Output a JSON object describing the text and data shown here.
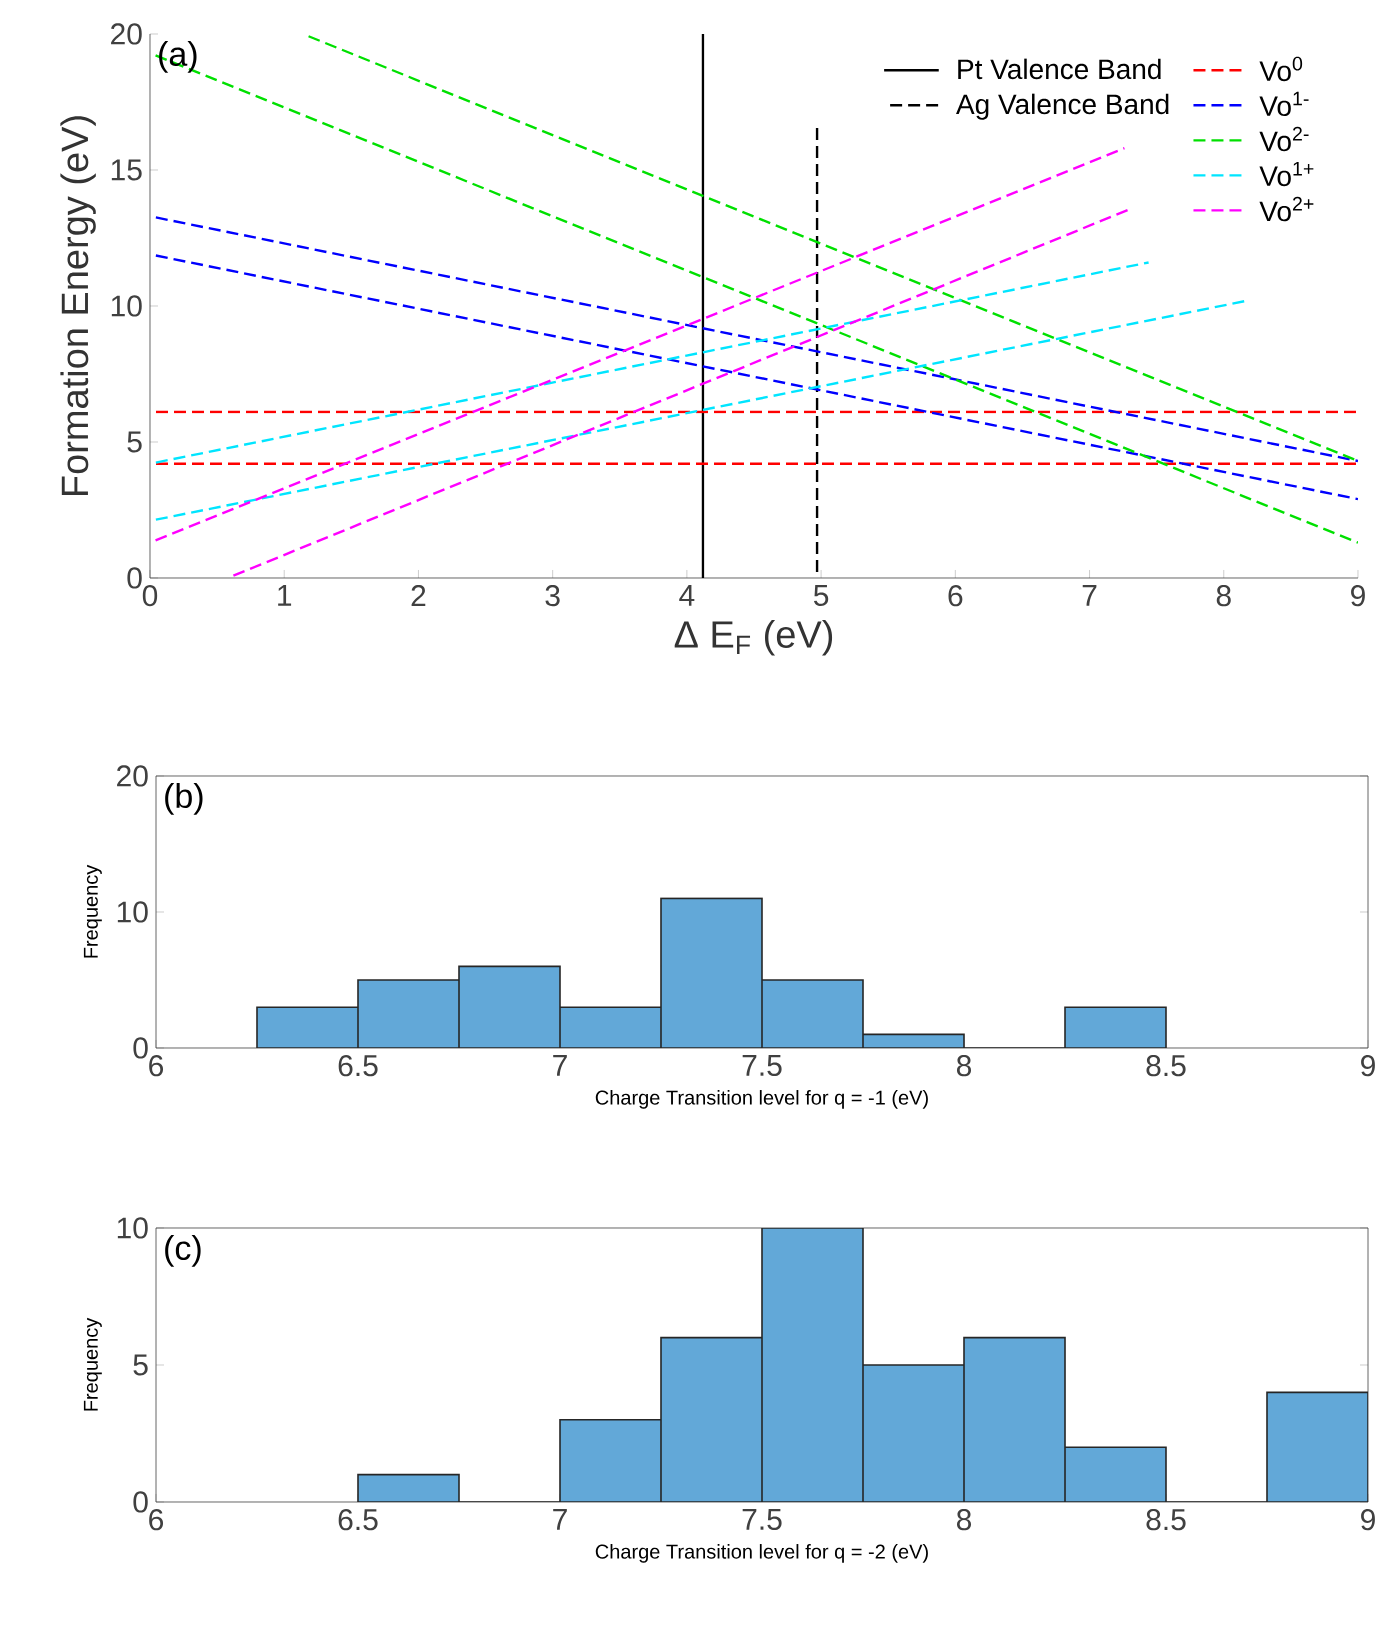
{
  "chart_data": [
    {
      "type": "line",
      "xlabel": "Δ E$_{F}$ (eV)",
      "ylabel": "Formation Energy (eV)",
      "annotations": [
        "(a)"
      ],
      "xlim": [
        0,
        9
      ],
      "ylim": [
        0,
        20
      ],
      "xticks": [
        0,
        1,
        2,
        3,
        4,
        5,
        6,
        7,
        8,
        9
      ],
      "yticks": [
        0,
        5,
        10,
        15,
        20
      ],
      "legend": "top right",
      "marker": "none",
      "grid": false,
      "series": [
        {
          "name": "Pt Valence Band",
          "color": "#000000",
          "line_style": "solid",
          "x": [
            4.12,
            4.12
          ],
          "values": [
            0,
            20
          ]
        },
        {
          "name": "Ag Valence Band",
          "color": "#000000",
          "line_style": "dashed",
          "x": [
            4.97,
            4.97
          ],
          "values": [
            0,
            16.6
          ]
        },
        {
          "name": "Vo$^{0}$",
          "color": "#ff0000",
          "line_style": "dashed",
          "x": [
            0,
            9
          ],
          "values": [
            6.1,
            6.1
          ]
        },
        {
          "color": "#ff0000",
          "line_style": "dashed",
          "x": [
            0,
            9
          ],
          "values": [
            4.2,
            4.2
          ]
        },
        {
          "name": "Vo$^{1-}$",
          "color": "#0000ff",
          "line_style": "dashed",
          "x": [
            0,
            9
          ],
          "values": [
            13.3,
            4.3
          ]
        },
        {
          "color": "#0000ff",
          "line_style": "dashed",
          "x": [
            0,
            9
          ],
          "values": [
            11.9,
            2.9
          ]
        },
        {
          "name": "Vo$^{2-}$",
          "color": "#00e000",
          "line_style": "dashed",
          "x": [
            0,
            9
          ],
          "values": [
            19.3,
            1.3
          ]
        },
        {
          "color": "#00e000",
          "line_style": "dashed",
          "x": [
            1.14,
            9
          ],
          "values": [
            20,
            4.3
          ]
        },
        {
          "name": "Vo$^{1+}$",
          "color": "#00e5ff",
          "line_style": "dashed",
          "x": [
            0,
            7.44
          ],
          "values": [
            4.2,
            11.6
          ]
        },
        {
          "color": "#00e5ff",
          "line_style": "dashed",
          "x": [
            0,
            8.18
          ],
          "values": [
            2.1,
            10.2
          ]
        },
        {
          "name": "Vo$^{2+}$",
          "color": "#ff00ff",
          "line_style": "dashed",
          "x": [
            0,
            7.26
          ],
          "values": [
            1.3,
            15.8
          ]
        },
        {
          "color": "#ff00ff",
          "line_style": "dashed",
          "x": [
            0.58,
            7.32
          ],
          "values": [
            0,
            13.6
          ]
        }
      ]
    },
    {
      "type": "histogram",
      "xlabel": "Charge Transition level for q = -1 (eV)",
      "ylabel": "Frequency",
      "annotations": [
        "(b)"
      ],
      "xlim": [
        6,
        9
      ],
      "ylim": [
        0,
        20
      ],
      "xticks": [
        6,
        6.5,
        7,
        7.5,
        8,
        8.5,
        9
      ],
      "yticks": [
        0,
        10,
        20
      ],
      "color": "#62a8d8",
      "bins": [
        6.25,
        6.5,
        6.75,
        7,
        7.25,
        7.5,
        7.75,
        8,
        8.25,
        8.5
      ],
      "values": [
        3,
        5,
        6,
        3,
        11,
        5,
        1,
        0,
        3
      ]
    },
    {
      "type": "histogram",
      "xlabel": "Charge Transition level for q = -2 (eV)",
      "ylabel": "Frequency",
      "annotations": [
        "(c)"
      ],
      "xlim": [
        6,
        9
      ],
      "ylim": [
        0,
        10
      ],
      "xticks": [
        6,
        6.5,
        7,
        7.5,
        8,
        8.5,
        9
      ],
      "yticks": [
        0,
        5,
        10
      ],
      "color": "#62a8d8",
      "bins": [
        6.5,
        6.75,
        7,
        7.25,
        7.5,
        7.75,
        8,
        8.25,
        8.5,
        8.75,
        9
      ],
      "values": [
        1,
        0,
        3,
        6,
        10,
        5,
        6,
        2,
        0,
        4
      ]
    }
  ]
}
